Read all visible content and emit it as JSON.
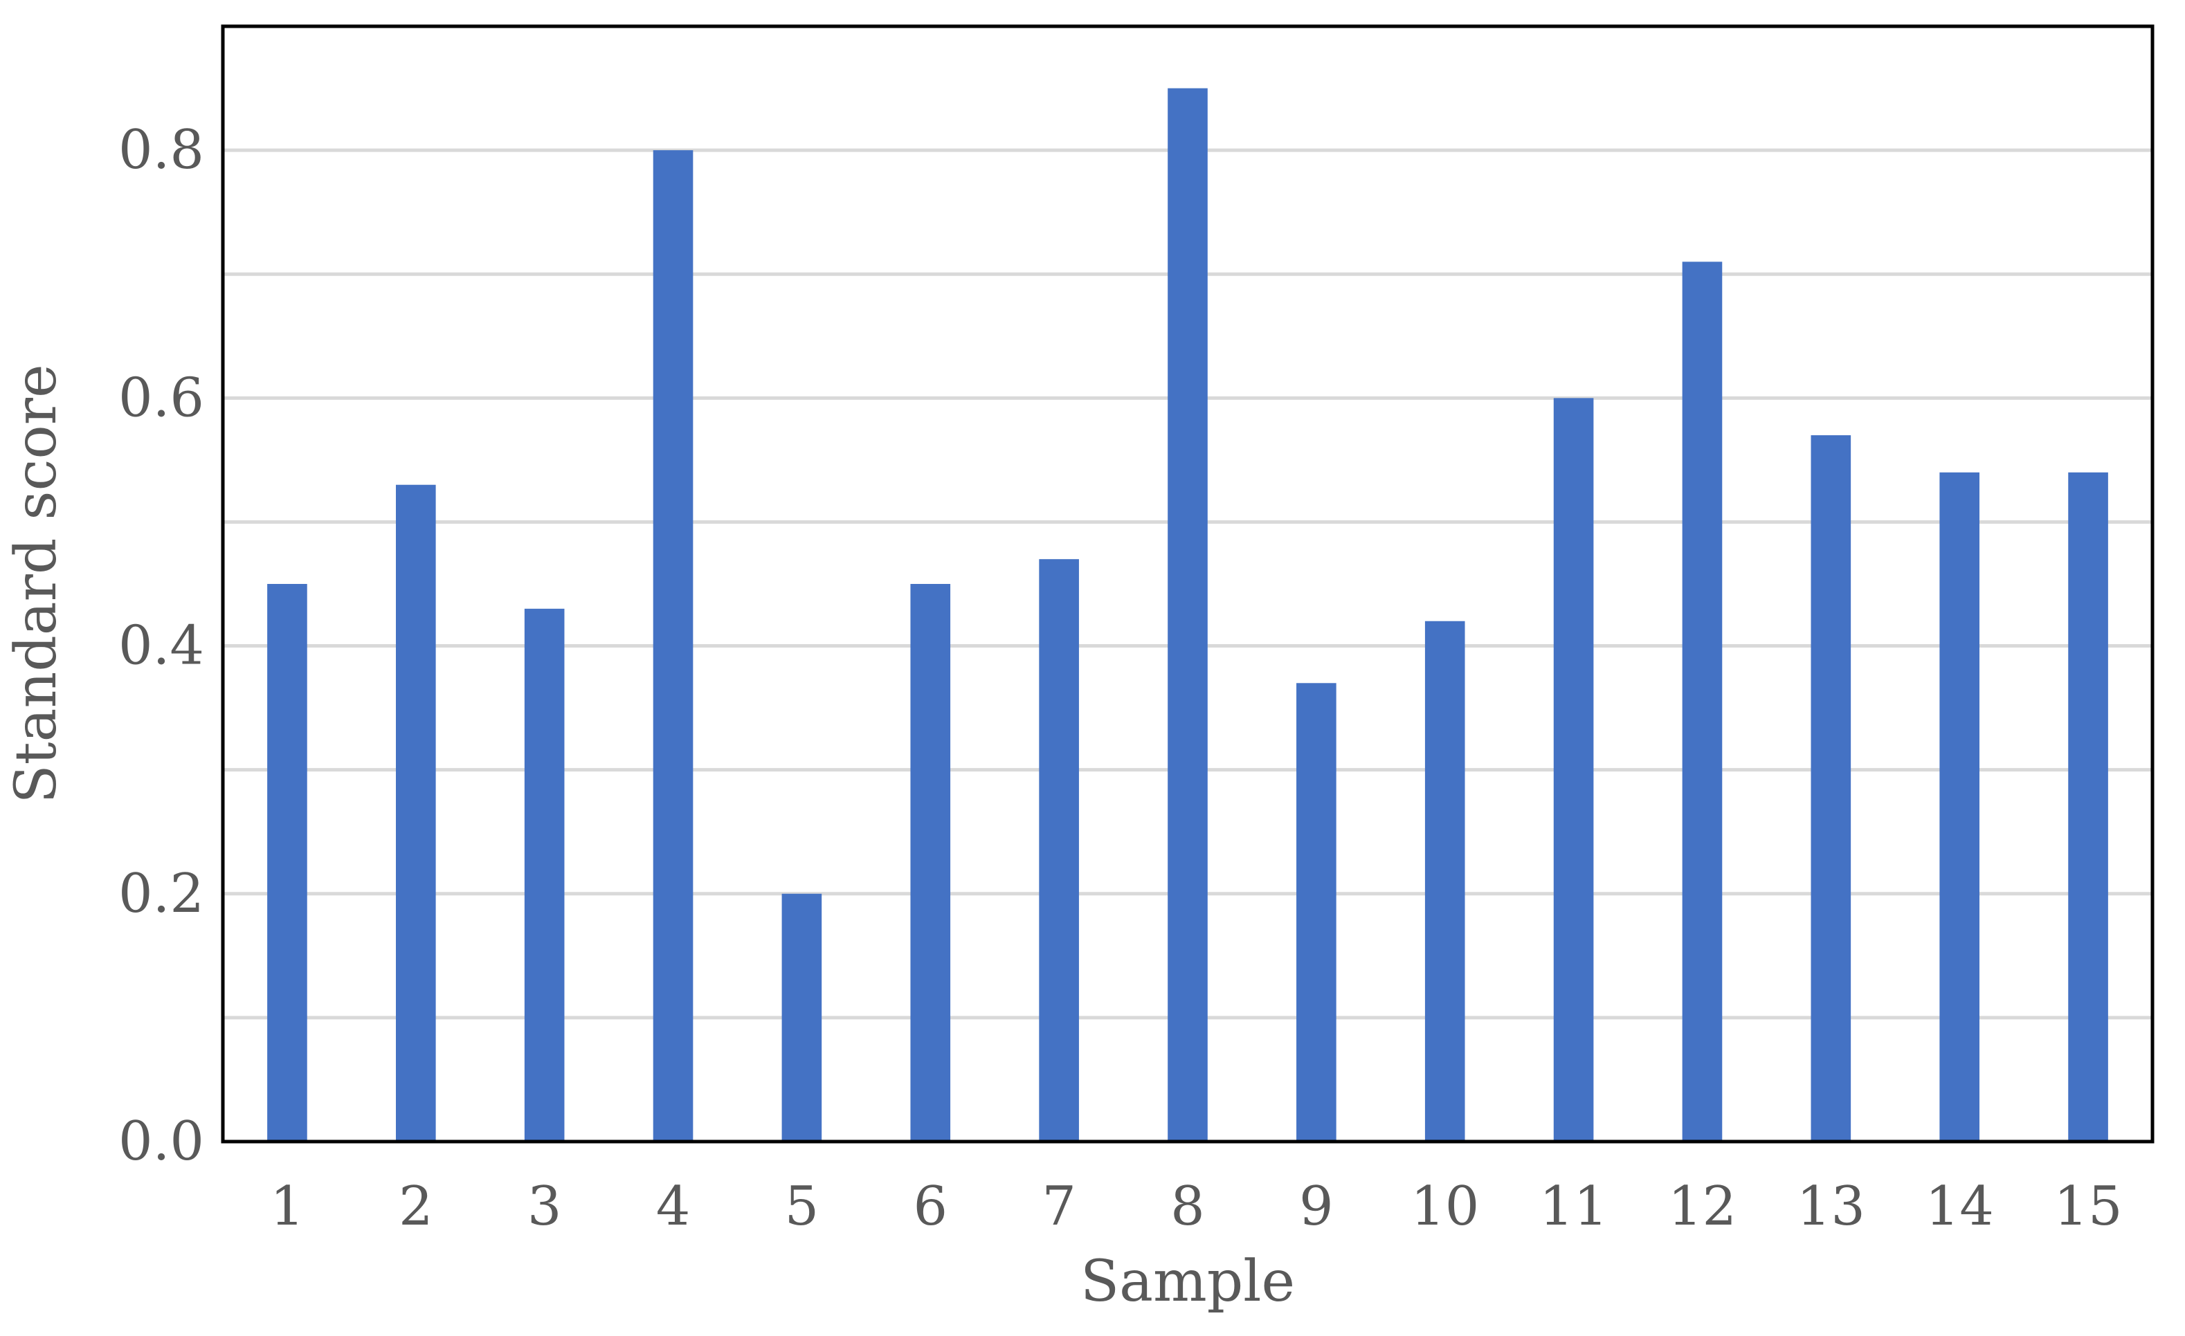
{
  "chart_data": {
    "type": "bar",
    "title": "",
    "xlabel": "Sample",
    "ylabel": "Standard score",
    "categories": [
      "1",
      "2",
      "3",
      "4",
      "5",
      "6",
      "7",
      "8",
      "9",
      "10",
      "11",
      "12",
      "13",
      "14",
      "15"
    ],
    "series": [
      {
        "values": [
          0.45,
          0.53,
          0.43,
          0.8,
          0.2,
          0.45,
          0.47,
          0.85,
          0.37,
          0.42,
          0.6,
          0.71,
          0.57,
          0.54,
          0.54
        ]
      }
    ],
    "ylim": [
      0,
      0.9
    ],
    "yticks": [
      0.0,
      0.2,
      0.4,
      0.6,
      0.8
    ],
    "ytick_labels": [
      "0.0",
      "0.2",
      "0.4",
      "0.6",
      "0.8"
    ],
    "grid": true,
    "legend": "none",
    "colors": {
      "bar": "#4472C4",
      "grid": "#D9D9D9",
      "frame": "#000000",
      "text": "#595959"
    }
  }
}
